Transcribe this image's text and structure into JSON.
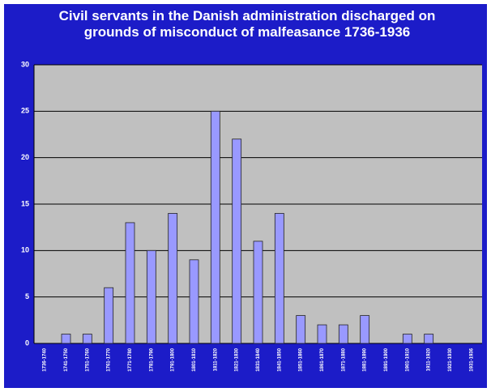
{
  "chart_data": {
    "type": "bar",
    "title": "Civil servants in the Danish administration discharged on grounds of misconduct of malfeasance 1736-1936",
    "categories": [
      "1736-1740",
      "1741-1750",
      "1751-1760",
      "1761-1770",
      "1771-1780",
      "1781-1790",
      "1791-1800",
      "1801-1810",
      "1811-1820",
      "1821-1830",
      "1831-1840",
      "1841-1850",
      "1851-1860",
      "1861-1870",
      "1871-1880",
      "1881-1890",
      "1891-1900",
      "1901-1910",
      "1911-1920",
      "1921-1930",
      "1931-1936"
    ],
    "values": [
      0,
      1,
      1,
      6,
      13,
      10,
      14,
      9,
      25,
      22,
      11,
      14,
      3,
      2,
      2,
      3,
      0,
      1,
      1,
      0,
      0
    ],
    "color": "#9999ff",
    "ylim": [
      0,
      30
    ],
    "yticks": [
      0,
      5,
      10,
      15,
      20,
      25,
      30
    ],
    "grid": true
  }
}
